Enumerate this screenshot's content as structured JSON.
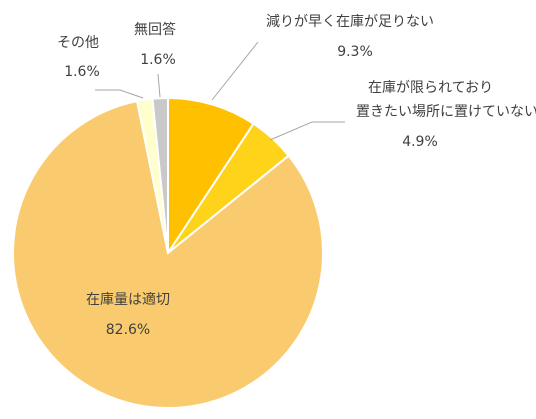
{
  "chart_data": {
    "type": "pie",
    "categories": [
      "減りが早く在庫が足りない",
      "在庫が限られており\n置きたい場所に置けていない",
      "在庫量は適切",
      "その他",
      "無回答"
    ],
    "values": [
      9.3,
      4.9,
      82.6,
      1.6,
      1.6
    ],
    "value_labels": [
      "9.3%",
      "4.9%",
      "82.6%",
      "1.6%",
      "1.6%"
    ],
    "colors": [
      "#FFC000",
      "#FFD31A",
      "#FACB6E",
      "#FFFFCC",
      "#C9C9C9"
    ]
  }
}
